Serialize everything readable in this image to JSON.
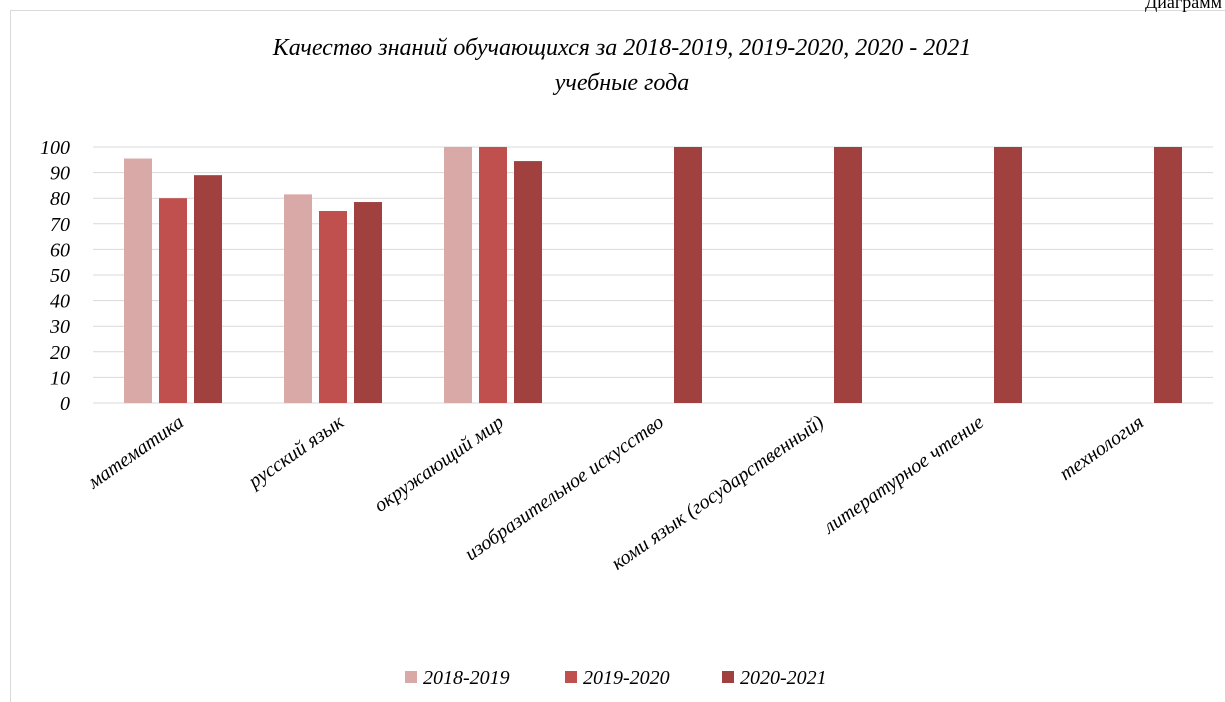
{
  "header": "Диаграмм",
  "chart_data": {
    "type": "bar",
    "title": [
      "Качество знаний обучающихся за 2018-2019, 2019-2020, 2020 - 2021",
      "учебные года"
    ],
    "categories": [
      "математика",
      "русский язык",
      "окружающий мир",
      "изобразительное искусство",
      "коми язык (государственный)",
      "литературное чтение",
      "технология"
    ],
    "series": [
      {
        "name": "2018-2019",
        "color": "#d9a9a8",
        "values": [
          95.5,
          81.5,
          100,
          null,
          null,
          null,
          null
        ]
      },
      {
        "name": "2019-2020",
        "color": "#c0504d",
        "values": [
          80,
          75,
          100,
          null,
          null,
          null,
          null
        ]
      },
      {
        "name": "2020-2021",
        "color": "#a04140",
        "values": [
          89,
          78.5,
          94.5,
          100,
          100,
          100,
          100
        ]
      }
    ],
    "ylim": [
      0,
      100
    ],
    "yticks": [
      0,
      10,
      20,
      30,
      40,
      50,
      60,
      70,
      80,
      90,
      100
    ],
    "grid": true,
    "legend": "bottom"
  }
}
